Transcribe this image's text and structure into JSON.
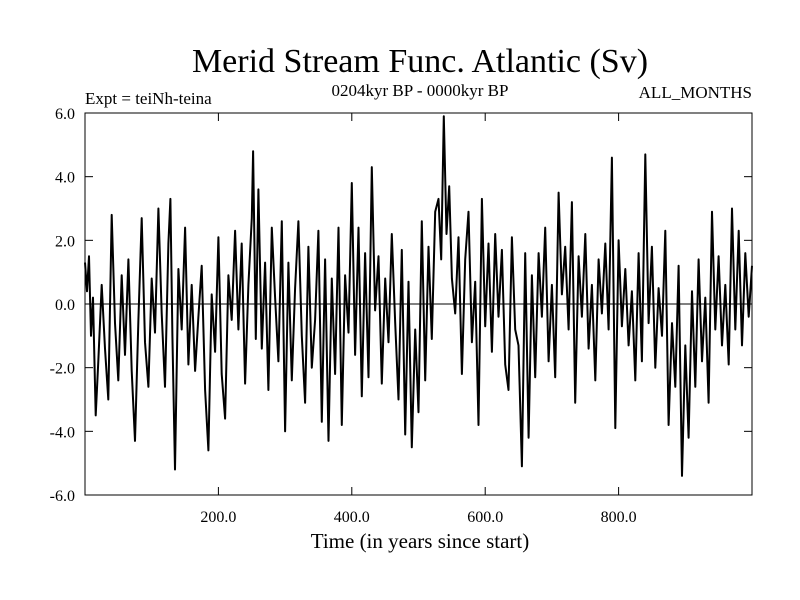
{
  "chart_data": {
    "type": "line",
    "title": "Merid Stream Func. Atlantic (Sv)",
    "subtitle_left": "Expt = teiNh-teina",
    "subtitle_center": "0204kyr BP - 0000kyr BP",
    "subtitle_right": "ALL_MONTHS",
    "xlabel": "Time (in years since start)",
    "ylabel": "",
    "xlim": [
      0,
      1000
    ],
    "ylim": [
      -6,
      6
    ],
    "x_ticks": [
      {
        "value": 200,
        "label": "200.0"
      },
      {
        "value": 400,
        "label": "400.0"
      },
      {
        "value": 600,
        "label": "600.0"
      },
      {
        "value": 800,
        "label": "800.0"
      }
    ],
    "y_ticks": [
      {
        "value": 6,
        "label": "6.0"
      },
      {
        "value": 4,
        "label": "4.0"
      },
      {
        "value": 2,
        "label": "2.0"
      },
      {
        "value": 0,
        "label": "0.0"
      },
      {
        "value": -2,
        "label": "-2.0"
      },
      {
        "value": -4,
        "label": "-4.0"
      },
      {
        "value": -6,
        "label": "-6.0"
      }
    ],
    "zero_line": 0,
    "line_color": "#000000",
    "series": [
      {
        "name": "Merid Stream Func. Atlantic",
        "x": [
          0,
          3,
          6,
          9,
          12,
          16,
          20,
          25,
          30,
          35,
          40,
          45,
          50,
          55,
          60,
          65,
          70,
          75,
          80,
          85,
          90,
          95,
          100,
          105,
          110,
          115,
          120,
          125,
          128,
          131,
          135,
          140,
          145,
          150,
          155,
          160,
          165,
          170,
          175,
          180,
          185,
          190,
          195,
          200,
          205,
          210,
          215,
          220,
          225,
          230,
          235,
          240,
          245,
          250,
          252,
          256,
          260,
          265,
          270,
          275,
          280,
          285,
          290,
          295,
          300,
          305,
          310,
          315,
          320,
          325,
          330,
          335,
          340,
          345,
          350,
          355,
          360,
          365,
          370,
          375,
          380,
          385,
          390,
          395,
          400,
          405,
          410,
          415,
          420,
          425,
          430,
          435,
          440,
          445,
          450,
          455,
          460,
          465,
          470,
          475,
          480,
          485,
          490,
          495,
          500,
          505,
          510,
          515,
          520,
          525,
          530,
          534,
          538,
          542,
          546,
          550,
          555,
          560,
          565,
          570,
          575,
          580,
          585,
          590,
          595,
          600,
          605,
          610,
          615,
          620,
          625,
          630,
          635,
          640,
          645,
          650,
          655,
          660,
          665,
          670,
          675,
          680,
          685,
          690,
          695,
          700,
          705,
          710,
          715,
          720,
          725,
          730,
          735,
          740,
          745,
          750,
          755,
          760,
          765,
          770,
          775,
          780,
          785,
          790,
          795,
          800,
          805,
          810,
          815,
          820,
          825,
          830,
          835,
          840,
          845,
          850,
          855,
          860,
          865,
          870,
          875,
          880,
          885,
          890,
          895,
          900,
          905,
          910,
          915,
          920,
          925,
          930,
          935,
          940,
          945,
          950,
          955,
          960,
          965,
          970,
          975,
          980,
          985,
          990,
          995,
          1000
        ],
        "y": [
          1.3,
          0.4,
          1.5,
          -1.0,
          0.2,
          -3.5,
          -1.8,
          0.6,
          -1.4,
          -3.0,
          2.8,
          -0.6,
          -2.4,
          0.9,
          -1.6,
          1.4,
          -2.1,
          -4.3,
          -0.5,
          2.7,
          -1.2,
          -2.6,
          0.8,
          -0.9,
          3.0,
          -0.3,
          -2.6,
          1.9,
          3.3,
          -1.0,
          -5.2,
          1.1,
          -0.8,
          2.4,
          -1.9,
          0.6,
          -2.1,
          -0.4,
          1.2,
          -2.7,
          -4.6,
          0.3,
          -1.5,
          2.1,
          -2.2,
          -3.6,
          0.9,
          -0.5,
          2.3,
          -0.8,
          1.9,
          -2.5,
          0.6,
          2.7,
          4.8,
          -1.1,
          3.6,
          -1.4,
          1.3,
          -2.7,
          2.4,
          0.2,
          -1.8,
          2.6,
          -4.0,
          1.3,
          -2.4,
          0.5,
          2.6,
          -1.0,
          -3.1,
          1.8,
          -2.0,
          -0.5,
          2.3,
          -3.7,
          1.4,
          -4.3,
          0.8,
          -2.2,
          2.4,
          -3.8,
          0.9,
          -0.9,
          3.8,
          -1.6,
          2.4,
          -2.9,
          1.6,
          -2.3,
          4.3,
          -0.2,
          1.5,
          -2.5,
          0.8,
          -1.2,
          2.2,
          -0.6,
          -3.0,
          1.7,
          -4.1,
          0.7,
          -4.5,
          -0.8,
          -3.4,
          2.6,
          -2.4,
          1.8,
          -1.1,
          2.9,
          3.3,
          1.4,
          5.9,
          2.2,
          3.7,
          0.8,
          -0.3,
          2.1,
          -2.2,
          1.4,
          2.9,
          -1.2,
          0.7,
          -3.8,
          3.3,
          -0.7,
          1.9,
          -1.5,
          2.2,
          -0.4,
          1.7,
          -1.9,
          -2.7,
          2.1,
          -0.8,
          -1.3,
          -5.1,
          1.6,
          -4.2,
          0.9,
          -2.3,
          1.6,
          -0.4,
          2.4,
          -1.8,
          0.6,
          -2.3,
          3.5,
          0.3,
          1.8,
          -0.8,
          3.2,
          -3.1,
          1.5,
          -0.4,
          2.2,
          -1.4,
          0.6,
          -2.4,
          1.4,
          -0.3,
          1.9,
          -0.8,
          4.6,
          -3.9,
          2.0,
          -0.7,
          1.1,
          -1.3,
          0.4,
          -2.4,
          1.6,
          -1.8,
          4.7,
          -0.6,
          1.8,
          -2.0,
          0.5,
          -1.0,
          2.3,
          -3.8,
          -0.6,
          -2.6,
          1.2,
          -5.4,
          -1.3,
          -4.2,
          0.4,
          -2.6,
          1.4,
          -1.8,
          0.2,
          -3.1,
          2.9,
          -0.8,
          1.5,
          -1.3,
          0.6,
          -1.9,
          3.0,
          -0.8,
          2.3,
          -1.3,
          1.6,
          -0.4,
          1.2
        ]
      }
    ]
  }
}
